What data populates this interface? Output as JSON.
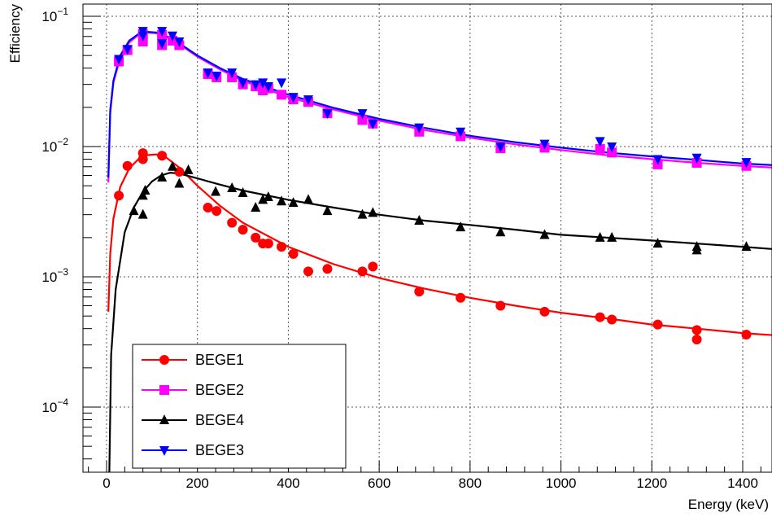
{
  "chart_data": {
    "type": "scatter",
    "xlabel": "Energy (keV)",
    "ylabel": "Efficiency",
    "xlim": [
      -50,
      1500
    ],
    "ylim": [
      3e-05,
      0.12
    ],
    "y_scale": "log",
    "grid": true,
    "legend_position": "bottom-left",
    "x_ticks": [
      0,
      200,
      400,
      600,
      800,
      1000,
      1200,
      1400
    ],
    "y_ticks": [
      {
        "value": 0.1,
        "base": "10",
        "exp": "−1"
      },
      {
        "value": 0.01,
        "base": "10",
        "exp": "−2"
      },
      {
        "value": 0.001,
        "base": "10",
        "exp": "−3"
      },
      {
        "value": 0.0001,
        "base": "10",
        "exp": "−4"
      }
    ],
    "series": [
      {
        "name": "BEGE1",
        "color": "#ff0000",
        "marker": "circle",
        "points": [
          [
            27,
            0.0042
          ],
          [
            46,
            0.0071
          ],
          [
            80,
            0.0089
          ],
          [
            80,
            0.008
          ],
          [
            122,
            0.0085
          ],
          [
            160,
            0.0064
          ],
          [
            223,
            0.0034
          ],
          [
            242,
            0.0032
          ],
          [
            276,
            0.0026
          ],
          [
            300,
            0.0023
          ],
          [
            328,
            0.002
          ],
          [
            344,
            0.0018
          ],
          [
            356,
            0.0018
          ],
          [
            385,
            0.0017
          ],
          [
            411,
            0.0015
          ],
          [
            444,
            0.0011
          ],
          [
            486,
            0.00115
          ],
          [
            563,
            0.0011
          ],
          [
            586,
            0.0012
          ],
          [
            688,
            0.00077
          ],
          [
            779,
            0.00069
          ],
          [
            867,
            0.0006
          ],
          [
            964,
            0.00054
          ],
          [
            1086,
            0.00049
          ],
          [
            1112,
            0.00047
          ],
          [
            1213,
            0.00043
          ],
          [
            1299,
            0.00033
          ],
          [
            1299,
            0.00039
          ],
          [
            1408,
            0.00036
          ]
        ],
        "fit": [
          [
            4,
            0.00054
          ],
          [
            8,
            0.0015
          ],
          [
            15,
            0.0028
          ],
          [
            30,
            0.0049
          ],
          [
            50,
            0.0068
          ],
          [
            70,
            0.008
          ],
          [
            90,
            0.0086
          ],
          [
            110,
            0.0087
          ],
          [
            130,
            0.0083
          ],
          [
            160,
            0.0069
          ],
          [
            200,
            0.005
          ],
          [
            250,
            0.0035
          ],
          [
            300,
            0.0026
          ],
          [
            400,
            0.0017
          ],
          [
            500,
            0.00125
          ],
          [
            600,
            0.00098
          ],
          [
            700,
            0.00081
          ],
          [
            800,
            0.00069
          ],
          [
            900,
            0.0006
          ],
          [
            1000,
            0.00053
          ],
          [
            1100,
            0.00048
          ],
          [
            1200,
            0.00043
          ],
          [
            1300,
            0.0004
          ],
          [
            1400,
            0.00037
          ],
          [
            1500,
            0.00035
          ]
        ]
      },
      {
        "name": "BEGE2",
        "color": "#ff00ff",
        "marker": "square",
        "points": [
          [
            27,
            0.045
          ],
          [
            46,
            0.055
          ],
          [
            80,
            0.064
          ],
          [
            80,
            0.073
          ],
          [
            122,
            0.06
          ],
          [
            122,
            0.072
          ],
          [
            145,
            0.065
          ],
          [
            160,
            0.06
          ],
          [
            223,
            0.036
          ],
          [
            242,
            0.034
          ],
          [
            276,
            0.034
          ],
          [
            300,
            0.03
          ],
          [
            328,
            0.029
          ],
          [
            344,
            0.027
          ],
          [
            356,
            0.028
          ],
          [
            385,
            0.025
          ],
          [
            411,
            0.023
          ],
          [
            444,
            0.022
          ],
          [
            486,
            0.018
          ],
          [
            563,
            0.016
          ],
          [
            586,
            0.015
          ],
          [
            688,
            0.013
          ],
          [
            779,
            0.012
          ],
          [
            867,
            0.0097
          ],
          [
            964,
            0.0098
          ],
          [
            1086,
            0.0096
          ],
          [
            1112,
            0.009
          ],
          [
            1213,
            0.0073
          ],
          [
            1299,
            0.0075
          ],
          [
            1408,
            0.0071
          ]
        ],
        "fit": [
          [
            4,
            0.0053
          ],
          [
            8,
            0.018
          ],
          [
            15,
            0.031
          ],
          [
            30,
            0.048
          ],
          [
            50,
            0.063
          ],
          [
            70,
            0.072
          ],
          [
            90,
            0.075
          ],
          [
            110,
            0.074
          ],
          [
            130,
            0.07
          ],
          [
            160,
            0.061
          ],
          [
            200,
            0.049
          ],
          [
            250,
            0.039
          ],
          [
            300,
            0.032
          ],
          [
            400,
            0.024
          ],
          [
            500,
            0.0192
          ],
          [
            600,
            0.0158
          ],
          [
            700,
            0.0134
          ],
          [
            800,
            0.0117
          ],
          [
            900,
            0.0104
          ],
          [
            1000,
            0.0094
          ],
          [
            1100,
            0.0086
          ],
          [
            1200,
            0.008
          ],
          [
            1300,
            0.0075
          ],
          [
            1400,
            0.0071
          ],
          [
            1500,
            0.0068
          ]
        ]
      },
      {
        "name": "BEGE4",
        "color": "#000000",
        "marker": "triangle-up",
        "points": [
          [
            60,
            0.0032
          ],
          [
            80,
            0.003
          ],
          [
            80,
            0.0042
          ],
          [
            85,
            0.0046
          ],
          [
            122,
            0.0058
          ],
          [
            145,
            0.007
          ],
          [
            160,
            0.0052
          ],
          [
            180,
            0.0066
          ],
          [
            240,
            0.0045
          ],
          [
            276,
            0.0048
          ],
          [
            300,
            0.0044
          ],
          [
            328,
            0.0034
          ],
          [
            344,
            0.0039
          ],
          [
            356,
            0.0041
          ],
          [
            385,
            0.0038
          ],
          [
            411,
            0.0037
          ],
          [
            444,
            0.0039
          ],
          [
            486,
            0.0032
          ],
          [
            563,
            0.003
          ],
          [
            586,
            0.0031
          ],
          [
            688,
            0.0027
          ],
          [
            779,
            0.0024
          ],
          [
            867,
            0.0022
          ],
          [
            964,
            0.0021
          ],
          [
            1086,
            0.002
          ],
          [
            1112,
            0.002
          ],
          [
            1213,
            0.0018
          ],
          [
            1299,
            0.0016
          ],
          [
            1299,
            0.0017
          ],
          [
            1408,
            0.0017
          ]
        ],
        "fit": [
          [
            6,
            3e-05
          ],
          [
            10,
            0.00025
          ],
          [
            20,
            0.0008
          ],
          [
            40,
            0.0022
          ],
          [
            60,
            0.0034
          ],
          [
            80,
            0.0045
          ],
          [
            100,
            0.0054
          ],
          [
            120,
            0.006
          ],
          [
            140,
            0.0063
          ],
          [
            160,
            0.0062
          ],
          [
            200,
            0.0057
          ],
          [
            250,
            0.0051
          ],
          [
            300,
            0.0046
          ],
          [
            400,
            0.0039
          ],
          [
            500,
            0.0034
          ],
          [
            600,
            0.003
          ],
          [
            700,
            0.0027
          ],
          [
            800,
            0.0025
          ],
          [
            900,
            0.0023
          ],
          [
            1000,
            0.0021
          ],
          [
            1100,
            0.002
          ],
          [
            1200,
            0.0019
          ],
          [
            1300,
            0.0018
          ],
          [
            1400,
            0.0017
          ],
          [
            1500,
            0.0016
          ]
        ]
      },
      {
        "name": "BEGE3",
        "color": "#0000ff",
        "marker": "triangle-down",
        "points": [
          [
            27,
            0.047
          ],
          [
            46,
            0.056
          ],
          [
            80,
            0.071
          ],
          [
            80,
            0.077
          ],
          [
            122,
            0.062
          ],
          [
            122,
            0.077
          ],
          [
            145,
            0.071
          ],
          [
            160,
            0.064
          ],
          [
            223,
            0.037
          ],
          [
            242,
            0.035
          ],
          [
            276,
            0.037
          ],
          [
            300,
            0.031
          ],
          [
            328,
            0.03
          ],
          [
            344,
            0.031
          ],
          [
            356,
            0.029
          ],
          [
            385,
            0.031
          ],
          [
            411,
            0.024
          ],
          [
            444,
            0.023
          ],
          [
            486,
            0.018
          ],
          [
            563,
            0.018
          ],
          [
            586,
            0.015
          ],
          [
            688,
            0.014
          ],
          [
            779,
            0.013
          ],
          [
            867,
            0.01
          ],
          [
            964,
            0.0105
          ],
          [
            1086,
            0.011
          ],
          [
            1112,
            0.01
          ],
          [
            1213,
            0.008
          ],
          [
            1299,
            0.0082
          ],
          [
            1408,
            0.0076
          ]
        ],
        "fit": [
          [
            4,
            0.0058
          ],
          [
            8,
            0.019
          ],
          [
            15,
            0.032
          ],
          [
            30,
            0.05
          ],
          [
            50,
            0.065
          ],
          [
            70,
            0.073
          ],
          [
            90,
            0.076
          ],
          [
            110,
            0.075
          ],
          [
            130,
            0.071
          ],
          [
            160,
            0.062
          ],
          [
            200,
            0.05
          ],
          [
            250,
            0.04
          ],
          [
            300,
            0.033
          ],
          [
            400,
            0.025
          ],
          [
            500,
            0.0198
          ],
          [
            600,
            0.0163
          ],
          [
            700,
            0.0139
          ],
          [
            800,
            0.0121
          ],
          [
            900,
            0.0108
          ],
          [
            1000,
            0.0098
          ],
          [
            1100,
            0.009
          ],
          [
            1200,
            0.0084
          ],
          [
            1300,
            0.0079
          ],
          [
            1400,
            0.0074
          ],
          [
            1500,
            0.0071
          ]
        ]
      }
    ]
  }
}
